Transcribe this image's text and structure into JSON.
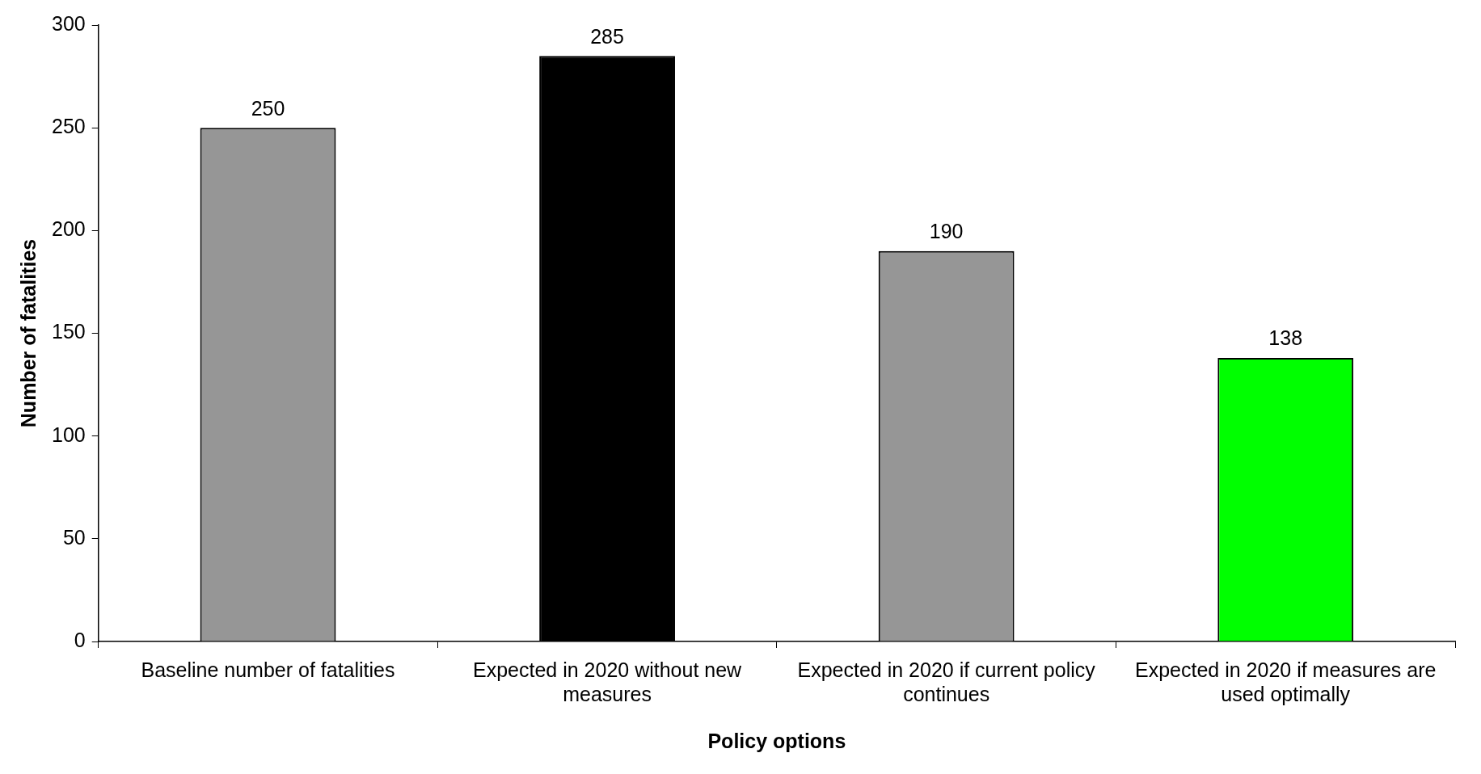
{
  "chart_data": {
    "type": "bar",
    "xlabel": "Policy options",
    "ylabel": "Number of fatalities",
    "categories": [
      "Baseline number of fatalities",
      "Expected in 2020 without new measures",
      "Expected in 2020 if current policy continues",
      "Expected in 2020 if measures are used optimally"
    ],
    "values": [
      250,
      285,
      190,
      138
    ],
    "colors": [
      "#969696",
      "#000000",
      "#969696",
      "#00ff00"
    ],
    "ylim": [
      0,
      300
    ],
    "yticks": [
      0,
      50,
      100,
      150,
      200,
      250,
      300
    ],
    "data_labels": true,
    "grid": false,
    "legend": false
  }
}
